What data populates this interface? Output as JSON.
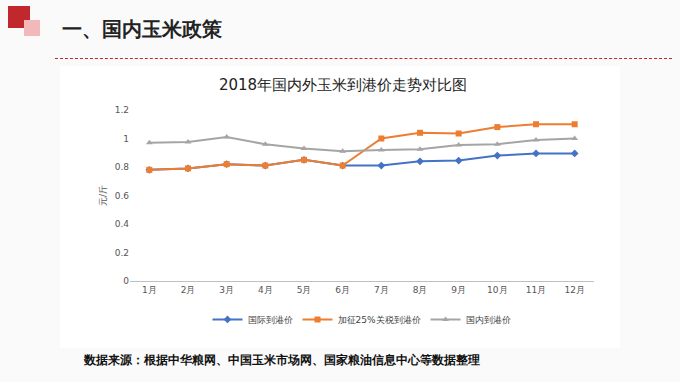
{
  "page": {
    "heading": "一、国内玉米政策",
    "source": "数据来源：根据中华粮网、中国玉米市场网、国家粮油信息中心等数据整理"
  },
  "chart_data": {
    "type": "line",
    "title": "2018年国内外玉米到港价走势对比图",
    "y_label": "元/斤",
    "categories": [
      "1月",
      "2月",
      "3月",
      "4月",
      "5月",
      "6月",
      "7月",
      "8月",
      "9月",
      "10月",
      "11月",
      "12月"
    ],
    "series": [
      {
        "name": "国际到港价",
        "color": "#4472c4",
        "marker": "diamond",
        "line_style": "solid",
        "values": [
          0.78,
          0.79,
          0.82,
          0.81,
          0.85,
          0.81,
          0.81,
          0.84,
          0.845,
          0.88,
          0.895,
          0.895
        ]
      },
      {
        "name": "加征25%关税到港价",
        "color": "#ed7d31",
        "marker": "square",
        "line_style": "solid",
        "values": [
          0.78,
          0.79,
          0.82,
          0.81,
          0.85,
          0.81,
          1.0,
          1.04,
          1.035,
          1.08,
          1.1,
          1.1
        ]
      },
      {
        "name": "国内到港价",
        "color": "#a5a5a5",
        "marker": "triangle-up",
        "line_style": "solid",
        "values": [
          0.97,
          0.975,
          1.01,
          0.96,
          0.93,
          0.91,
          0.92,
          0.925,
          0.955,
          0.96,
          0.99,
          1.0
        ]
      }
    ],
    "ylim": [
      0,
      1.2
    ],
    "yticks": [
      0,
      0.2,
      0.4,
      0.6,
      0.8,
      1,
      1.2
    ],
    "grid": false,
    "legend": "bottom"
  }
}
